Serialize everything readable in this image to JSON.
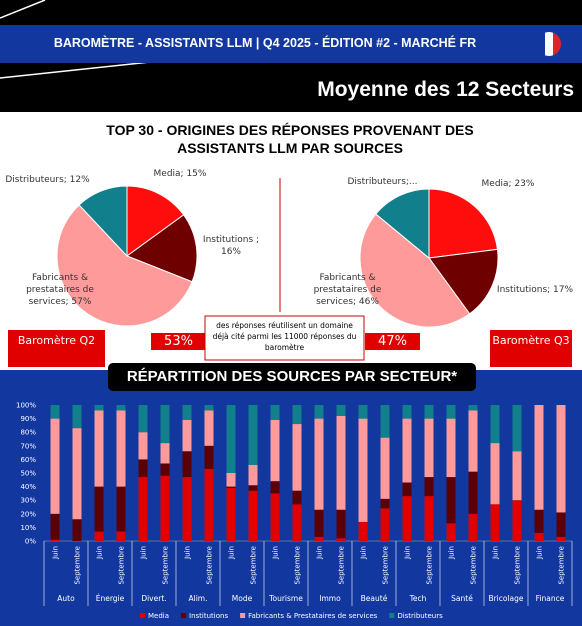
{
  "header": {
    "banner": "BAROMÈTRE - ASSISTANTS LLM | Q4 2025 - ÉDITION #2 - MARCHÉ FR",
    "subtitle": "Moyenne des 12 Secteurs"
  },
  "pies_title": "TOP 30 - ORIGINES DES RÉPONSES PROVENANT DES ASSISTANTS LLM PAR SOURCES",
  "reuse": {
    "q2": "53%",
    "q3": "47%",
    "note": "des réponses réutilisent un domaine déjà cité parmi les 11000 réponses du baromètre"
  },
  "chart_data": [
    {
      "type": "pie",
      "title": "Baromètre Q2",
      "categories": [
        "Media",
        "Institutions",
        "Fabricants & prestataires de services",
        "Distributeurs"
      ],
      "values": [
        15,
        16,
        57,
        12
      ],
      "value_labels": [
        "Media; 15%",
        "Institutions ; 16%",
        "Fabricants & prestataires de services; 57%",
        "Distributeurs; 12%"
      ],
      "colors": [
        "#ff0d0d",
        "#6e0000",
        "#ff9a9a",
        "#12808c"
      ]
    },
    {
      "type": "pie",
      "title": "Baromètre Q3",
      "categories": [
        "Media",
        "Institutions",
        "Fabricants & prestataires de services",
        "Distributeurs"
      ],
      "values": [
        23,
        17,
        46,
        14
      ],
      "value_labels": [
        "Media; 23%",
        "Institutions; 17%",
        "Fabricants & prestataires de services; 46%",
        "Distributeurs;..."
      ],
      "colors": [
        "#ff0d0d",
        "#6e0000",
        "#ff9a9a",
        "#12808c"
      ]
    },
    {
      "type": "stacked-bar",
      "title": "RÉPARTITION DES SOURCES PAR SECTEUR*",
      "categories": [
        "Juin",
        "Septembre",
        "Juin",
        "Septembre",
        "Juin",
        "Septembre",
        "Juin",
        "Septembre",
        "Juin",
        "Septembre",
        "Juin",
        "Septembre",
        "Juin",
        "Septembre",
        "Juin",
        "Septembre",
        "Juin",
        "Septembre",
        "Juin",
        "Septembre",
        "Juin",
        "Septembre",
        "Juin",
        "Septembre"
      ],
      "group_labels": [
        "Auto",
        "Énergie",
        "Divert.",
        "Alim.",
        "Mode",
        "Tourisme",
        "Immo",
        "Beauté",
        "Tech",
        "Santé",
        "Bricolage",
        "Finance"
      ],
      "series": [
        {
          "name": "Media",
          "color": "#e00000",
          "values": [
            1,
            0,
            7,
            7,
            47,
            48,
            47,
            53,
            39,
            37,
            35,
            27,
            3,
            2,
            14,
            24,
            33,
            33,
            13,
            20,
            27,
            30,
            6,
            3
          ]
        },
        {
          "name": "Institutions",
          "color": "#5c0008",
          "values": [
            19,
            16,
            33,
            33,
            13,
            9,
            19,
            17,
            1,
            4,
            9,
            10,
            20,
            21,
            0,
            7,
            10,
            14,
            34,
            31,
            0,
            0,
            17,
            18
          ]
        },
        {
          "name": "Fabricants & Prestataires de services",
          "color": "#ff9a9a",
          "values": [
            70,
            67,
            56,
            56,
            20,
            15,
            23,
            26,
            10,
            15,
            45,
            49,
            67,
            69,
            76,
            45,
            47,
            43,
            43,
            45,
            45,
            36,
            77,
            79
          ]
        },
        {
          "name": "Distributeurs",
          "color": "#12808c",
          "values": [
            10,
            17,
            4,
            4,
            20,
            28,
            11,
            4,
            50,
            44,
            11,
            14,
            10,
            8,
            10,
            24,
            10,
            10,
            10,
            4,
            28,
            34,
            0,
            0
          ]
        }
      ],
      "ylim": [
        0,
        100
      ],
      "yticks": [
        {
          "value": 0,
          "label": "0%"
        },
        {
          "value": 10,
          "label": "10%"
        },
        {
          "value": 20,
          "label": "20%"
        },
        {
          "value": 30,
          "label": "30%"
        },
        {
          "value": 40,
          "label": "40%"
        },
        {
          "value": 50,
          "label": "50%"
        },
        {
          "value": 60,
          "label": "60%"
        },
        {
          "value": 70,
          "label": "70%"
        },
        {
          "value": 80,
          "label": "80%"
        },
        {
          "value": 90,
          "label": "90%"
        },
        {
          "value": 100,
          "label": "100%"
        }
      ],
      "grid": false
    }
  ]
}
